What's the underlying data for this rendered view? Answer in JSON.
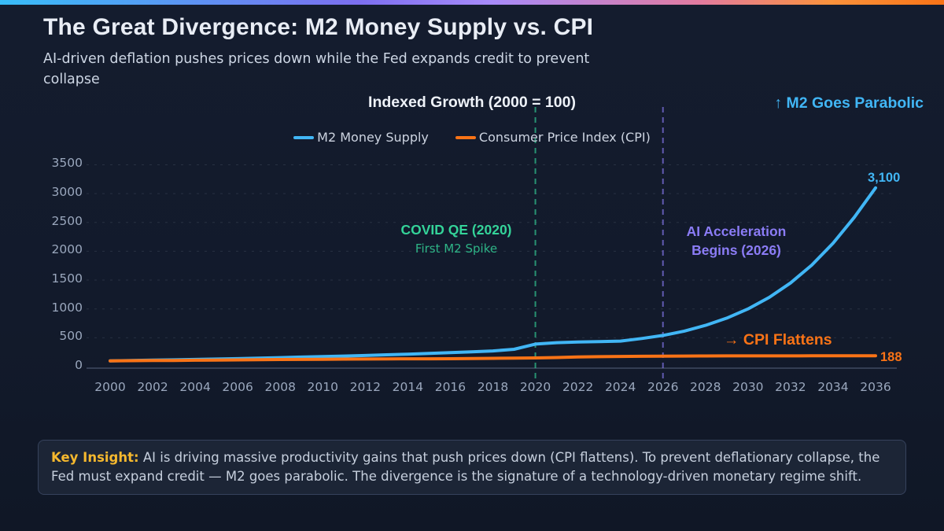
{
  "page": {
    "title": "The Great Divergence: M2 Money Supply vs. CPI",
    "subtitle": "AI-driven deflation pushes prices down while the Fed expands credit to prevent collapse"
  },
  "chart_data": {
    "type": "line",
    "title": "Indexed Growth (2000 = 100)",
    "xlabel": "",
    "ylabel": "",
    "ylim": [
      0,
      3500
    ],
    "grid": "dashed horizontal",
    "legend_position": "top center",
    "x": [
      2000,
      2001,
      2002,
      2003,
      2004,
      2005,
      2006,
      2007,
      2008,
      2009,
      2010,
      2011,
      2012,
      2013,
      2014,
      2015,
      2016,
      2017,
      2018,
      2019,
      2020,
      2021,
      2022,
      2023,
      2024,
      2025,
      2026,
      2027,
      2028,
      2029,
      2030,
      2031,
      2032,
      2033,
      2034,
      2035,
      2036
    ],
    "series": [
      {
        "name": "M2 Money Supply",
        "color": "#41b6f5",
        "end_label": "3,100",
        "values": [
          100,
          106,
          112,
          118,
          124,
          131,
          138,
          147,
          156,
          165,
          173,
          183,
          193,
          204,
          216,
          229,
          243,
          257,
          272,
          300,
          390,
          415,
          425,
          432,
          442,
          487,
          540,
          615,
          715,
          840,
          1000,
          1200,
          1450,
          1760,
          2140,
          2590,
          3100
        ]
      },
      {
        "name": "Consumer Price Index (CPI)",
        "color": "#f97316",
        "end_label": "188",
        "values": [
          100,
          103,
          105,
          107,
          110,
          113,
          116,
          119,
          123,
          124,
          126,
          129,
          131,
          133,
          135,
          135,
          137,
          140,
          143,
          146,
          150,
          157,
          166,
          172,
          176,
          179,
          181,
          183,
          184,
          185,
          185,
          186,
          186,
          187,
          187,
          188,
          188
        ]
      }
    ],
    "y_ticks": [
      0,
      500,
      1000,
      1500,
      2000,
      2500,
      3000,
      3500
    ],
    "x_ticks": [
      2000,
      2002,
      2004,
      2006,
      2008,
      2010,
      2012,
      2014,
      2016,
      2018,
      2020,
      2022,
      2024,
      2026,
      2028,
      2030,
      2032,
      2034,
      2036
    ],
    "annotations": [
      {
        "id": "m2_parabolic",
        "text": "↑ M2 Goes Parabolic",
        "color": "#41b6f5"
      },
      {
        "id": "covid_qe",
        "text": "COVID QE (2020)",
        "sub": "First M2 Spike",
        "color": "#34d399",
        "sub_color": "#2eb487",
        "line_x": 2020
      },
      {
        "id": "ai_acceleration",
        "line1": "AI Acceleration",
        "line2": "Begins (2026)",
        "color": "#8b7cf6",
        "line_x": 2026
      },
      {
        "id": "cpi_flattens",
        "text": "→ CPI Flattens",
        "color": "#f97316"
      }
    ]
  },
  "insight": {
    "label": "Key Insight:",
    "label_color": "#f5b82e",
    "text": " AI is driving massive productivity gains that push prices down (CPI flattens). To prevent deflationary collapse, the Fed must expand credit — M2 goes parabolic. The divergence is the signature of a technology-driven monetary regime shift."
  },
  "colors": {
    "background": "#121a2b",
    "m2_line": "#41b6f5",
    "cpi_line": "#f97316",
    "covid_green": "#34d399",
    "ai_purple": "#8b7cf6",
    "insight_amber": "#f5b82e",
    "axis_text": "#9aa7bd",
    "topbar_gradient": [
      "#38bdf8",
      "#a78bfa",
      "#f97316"
    ]
  }
}
